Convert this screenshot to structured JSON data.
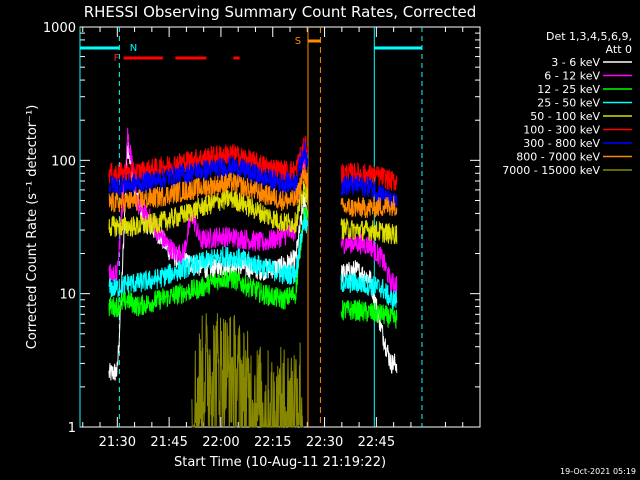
{
  "footer_timestamp": "19-Oct-2021 05:19",
  "chart_data": {
    "type": "line",
    "title": "RHESSI Observing Summary Count Rates, Corrected",
    "xlabel": "Start Time (10-Aug-11 21:19:22)",
    "ylabel": "Corrected Count Rate (s⁻¹ detector⁻¹)",
    "yscale": "log",
    "ylim": [
      1,
      1000
    ],
    "xlim_minutes": [
      21.32,
      23.25
    ],
    "x_ticks": [
      {
        "label": "21:30",
        "minute": 21.5
      },
      {
        "label": "21:45",
        "minute": 21.75
      },
      {
        "label": "22:00",
        "minute": 22.0
      },
      {
        "label": "22:15",
        "minute": 22.25
      },
      {
        "label": "22:30",
        "minute": 22.5
      },
      {
        "label": "22:45",
        "minute": 22.75
      }
    ],
    "y_ticks": [
      {
        "label": "1",
        "value": 1
      },
      {
        "label": "10",
        "value": 10
      },
      {
        "label": "100",
        "value": 100
      },
      {
        "label": "1000",
        "value": 1000
      }
    ],
    "legend_header": [
      "Det 1,3,4,5,6,9,",
      "Att 0"
    ],
    "legend_position": "top-right-outside",
    "series": [
      {
        "name": "3 - 6 keV",
        "color": "#ffffff",
        "segments": [
          [
            [
              21.46,
              2.5
            ],
            [
              21.5,
              2.6
            ],
            [
              21.52,
              10
            ],
            [
              21.55,
              140
            ],
            [
              21.58,
              60
            ],
            [
              21.63,
              35
            ],
            [
              21.7,
              28
            ],
            [
              21.76,
              20
            ],
            [
              21.8,
              18
            ],
            [
              21.85,
              17
            ],
            [
              21.9,
              16
            ],
            [
              21.95,
              15
            ],
            [
              22.0,
              16
            ],
            [
              22.1,
              16
            ],
            [
              22.2,
              15
            ],
            [
              22.3,
              16
            ],
            [
              22.36,
              18
            ],
            [
              22.4,
              50
            ],
            [
              22.42,
              40
            ]
          ],
          [
            [
              22.58,
              14
            ],
            [
              22.65,
              15
            ],
            [
              22.72,
              13
            ],
            [
              22.78,
              5
            ],
            [
              22.82,
              3
            ],
            [
              22.85,
              3
            ]
          ]
        ]
      },
      {
        "name": "6 - 12 keV",
        "color": "#ff00ff",
        "segments": [
          [
            [
              21.46,
              14
            ],
            [
              21.5,
              14
            ],
            [
              21.55,
              160
            ],
            [
              21.6,
              45
            ],
            [
              21.65,
              38
            ],
            [
              21.7,
              28
            ],
            [
              21.78,
              20
            ],
            [
              21.82,
              20
            ],
            [
              21.86,
              40
            ],
            [
              21.9,
              25
            ],
            [
              21.95,
              26
            ],
            [
              22.0,
              27
            ],
            [
              22.1,
              26
            ],
            [
              22.2,
              24
            ],
            [
              22.3,
              27
            ],
            [
              22.36,
              30
            ],
            [
              22.4,
              100
            ],
            [
              22.42,
              60
            ]
          ],
          [
            [
              22.58,
              24
            ],
            [
              22.65,
              24
            ],
            [
              22.72,
              23
            ],
            [
              22.78,
              18
            ],
            [
              22.82,
              12
            ],
            [
              22.85,
              12
            ]
          ]
        ]
      },
      {
        "name": "12 - 25 keV",
        "color": "#00ff00",
        "segments": [
          [
            [
              21.46,
              8
            ],
            [
              21.5,
              8
            ],
            [
              21.55,
              9
            ],
            [
              21.6,
              8
            ],
            [
              21.7,
              9
            ],
            [
              21.8,
              10
            ],
            [
              21.9,
              11
            ],
            [
              22.0,
              13
            ],
            [
              22.05,
              13
            ],
            [
              22.1,
              12
            ],
            [
              22.2,
              10
            ],
            [
              22.3,
              9
            ],
            [
              22.36,
              10
            ],
            [
              22.4,
              40
            ],
            [
              22.42,
              35
            ]
          ],
          [
            [
              22.58,
              7.5
            ],
            [
              22.65,
              7.5
            ],
            [
              22.72,
              7.2
            ],
            [
              22.78,
              7
            ],
            [
              22.82,
              6.5
            ],
            [
              22.85,
              6.5
            ]
          ]
        ]
      },
      {
        "name": "25 - 50 keV",
        "color": "#00ffff",
        "segments": [
          [
            [
              21.46,
              11
            ],
            [
              21.5,
              11
            ],
            [
              21.55,
              12
            ],
            [
              21.6,
              12
            ],
            [
              21.7,
              13
            ],
            [
              21.8,
              15
            ],
            [
              21.9,
              17
            ],
            [
              22.0,
              19
            ],
            [
              22.05,
              19
            ],
            [
              22.1,
              18
            ],
            [
              22.2,
              16
            ],
            [
              22.3,
              14
            ],
            [
              22.36,
              14
            ],
            [
              22.4,
              35
            ],
            [
              22.42,
              30
            ]
          ],
          [
            [
              22.58,
              12
            ],
            [
              22.65,
              12
            ],
            [
              22.72,
              11.5
            ],
            [
              22.78,
              11
            ],
            [
              22.82,
              9
            ],
            [
              22.85,
              9
            ]
          ]
        ]
      },
      {
        "name": "50 - 100 keV",
        "color": "#dddd00",
        "segments": [
          [
            [
              21.46,
              32
            ],
            [
              21.5,
              32
            ],
            [
              21.6,
              32
            ],
            [
              21.7,
              34
            ],
            [
              21.8,
              38
            ],
            [
              21.9,
              44
            ],
            [
              22.0,
              50
            ],
            [
              22.05,
              52
            ],
            [
              22.1,
              48
            ],
            [
              22.2,
              40
            ],
            [
              22.3,
              34
            ],
            [
              22.36,
              34
            ],
            [
              22.4,
              60
            ],
            [
              22.42,
              55
            ]
          ],
          [
            [
              22.58,
              31
            ],
            [
              22.65,
              30
            ],
            [
              22.72,
              30
            ],
            [
              22.78,
              29
            ],
            [
              22.82,
              28
            ],
            [
              22.85,
              28
            ]
          ]
        ]
      },
      {
        "name": "100 - 300 keV",
        "color": "#ff0000",
        "segments": [
          [
            [
              21.46,
              80
            ],
            [
              21.5,
              80
            ],
            [
              21.6,
              82
            ],
            [
              21.7,
              88
            ],
            [
              21.8,
              96
            ],
            [
              21.9,
              104
            ],
            [
              22.0,
              110
            ],
            [
              22.05,
              112
            ],
            [
              22.1,
              106
            ],
            [
              22.2,
              92
            ],
            [
              22.3,
              84
            ],
            [
              22.36,
              84
            ],
            [
              22.4,
              130
            ],
            [
              22.42,
              120
            ]
          ],
          [
            [
              22.58,
              80
            ],
            [
              22.65,
              80
            ],
            [
              22.72,
              78
            ],
            [
              22.78,
              75
            ],
            [
              22.82,
              70
            ],
            [
              22.85,
              70
            ]
          ]
        ]
      },
      {
        "name": "300 - 800 keV",
        "color": "#0000ff",
        "segments": [
          [
            [
              21.46,
              65
            ],
            [
              21.5,
              65
            ],
            [
              21.6,
              67
            ],
            [
              21.7,
              72
            ],
            [
              21.8,
              78
            ],
            [
              21.9,
              84
            ],
            [
              22.0,
              88
            ],
            [
              22.05,
              90
            ],
            [
              22.1,
              86
            ],
            [
              22.2,
              74
            ],
            [
              22.3,
              68
            ],
            [
              22.36,
              68
            ],
            [
              22.4,
              120
            ],
            [
              22.42,
              100
            ]
          ],
          [
            [
              22.58,
              65
            ],
            [
              22.65,
              65
            ],
            [
              22.72,
              63
            ],
            [
              22.78,
              56
            ],
            [
              22.82,
              48
            ],
            [
              22.85,
              48
            ]
          ]
        ]
      },
      {
        "name": "800 - 7000 keV",
        "color": "#ff8800",
        "segments": [
          [
            [
              21.46,
              48
            ],
            [
              21.5,
              48
            ],
            [
              21.6,
              50
            ],
            [
              21.7,
              53
            ],
            [
              21.8,
              58
            ],
            [
              21.9,
              62
            ],
            [
              22.0,
              66
            ],
            [
              22.05,
              68
            ],
            [
              22.1,
              64
            ],
            [
              22.2,
              56
            ],
            [
              22.3,
              50
            ],
            [
              22.36,
              50
            ],
            [
              22.4,
              80
            ],
            [
              22.42,
              70
            ]
          ],
          [
            [
              22.58,
              44
            ],
            [
              22.65,
              44
            ],
            [
              22.72,
              44
            ],
            [
              22.78,
              45
            ],
            [
              22.82,
              46
            ],
            [
              22.85,
              46
            ]
          ]
        ]
      },
      {
        "name": "7000 - 15000 keV",
        "color": "#888800",
        "segments": [
          [
            [
              21.86,
              1
            ],
            [
              21.88,
              1.6
            ],
            [
              21.9,
              2
            ],
            [
              21.92,
              2.5
            ],
            [
              21.94,
              2.6
            ],
            [
              22.0,
              2.6
            ],
            [
              22.06,
              2.4
            ],
            [
              22.1,
              2
            ],
            [
              22.14,
              1.6
            ],
            [
              22.2,
              1.3
            ],
            [
              22.26,
              1.2
            ],
            [
              22.3,
              1.3
            ],
            [
              22.34,
              1.5
            ],
            [
              22.38,
              1.8
            ],
            [
              22.4,
              1
            ]
          ]
        ]
      }
    ],
    "annotations": {
      "attenuator_markers": [
        {
          "label": "N",
          "minute": 21.52
        },
        {
          "label": "S",
          "minute": 22.5
        }
      ],
      "flare_label": "F",
      "flare_intervals": [
        [
          21.53,
          21.72
        ],
        [
          21.78,
          21.93
        ],
        [
          22.06,
          22.09
        ]
      ],
      "night_intervals": [
        [
          21.32,
          21.51
        ],
        [
          22.74,
          22.97
        ]
      ],
      "saa_interval": [
        22.42,
        22.48
      ]
    }
  }
}
